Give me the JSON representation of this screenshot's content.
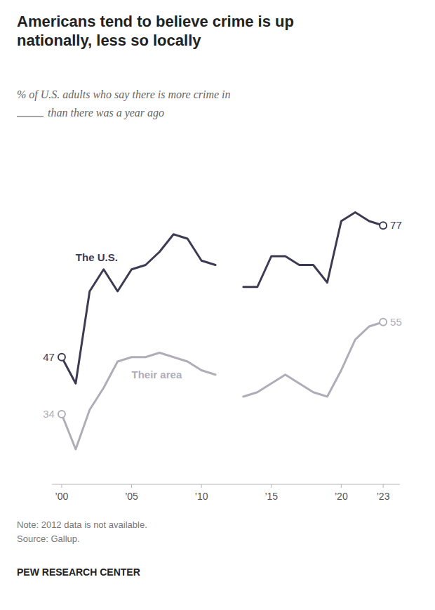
{
  "chart_data": {
    "type": "line",
    "title": "Americans tend to believe crime is up\nnationally, less so locally",
    "subtitle": [
      "% of U.S. adults who say there is more crime in",
      "than there was a year ago"
    ],
    "x": [
      2000,
      2001,
      2002,
      2003,
      2004,
      2005,
      2006,
      2007,
      2008,
      2009,
      2010,
      2011,
      2012,
      2013,
      2014,
      2015,
      2016,
      2017,
      2018,
      2019,
      2020,
      2021,
      2022,
      2023
    ],
    "series": [
      {
        "name": "The U.S.",
        "color": "#3d3b52",
        "values": [
          47,
          41,
          62,
          67,
          62,
          67,
          68,
          71,
          75,
          74,
          69,
          68,
          null,
          63,
          63,
          70,
          70,
          68,
          68,
          64,
          78,
          80,
          78,
          77
        ],
        "value_labels": [
          "47",
          null,
          null,
          null,
          null,
          null,
          null,
          null,
          null,
          null,
          null,
          null,
          null,
          null,
          null,
          null,
          null,
          null,
          null,
          null,
          null,
          null,
          null,
          "77"
        ]
      },
      {
        "name": "Their area",
        "color": "#b0adb9",
        "values": [
          34,
          26,
          35,
          40,
          46,
          47,
          47,
          48,
          47,
          46,
          44,
          43,
          null,
          38,
          39,
          41,
          43,
          41,
          39,
          38,
          44,
          51,
          54,
          55
        ],
        "value_labels": [
          "34",
          null,
          null,
          null,
          null,
          null,
          null,
          null,
          null,
          null,
          null,
          null,
          null,
          null,
          null,
          null,
          null,
          null,
          null,
          null,
          null,
          null,
          null,
          "55"
        ]
      }
    ],
    "xlim": [
      1999.3,
      2024.2
    ],
    "ylim": [
      18,
      90
    ],
    "xticks": [
      {
        "value": 2000,
        "label": "’00"
      },
      {
        "value": 2005,
        "label": "’05"
      },
      {
        "value": 2010,
        "label": "’10"
      },
      {
        "value": 2015,
        "label": "’15"
      },
      {
        "value": 2020,
        "label": "’20"
      },
      {
        "value": 2023,
        "label": "’23"
      }
    ],
    "grid": false,
    "tick_labels": "x",
    "note": "Note: 2012 data is not available.",
    "source": "Source: Gallup.",
    "footer": "PEW RESEARCH CENTER"
  }
}
